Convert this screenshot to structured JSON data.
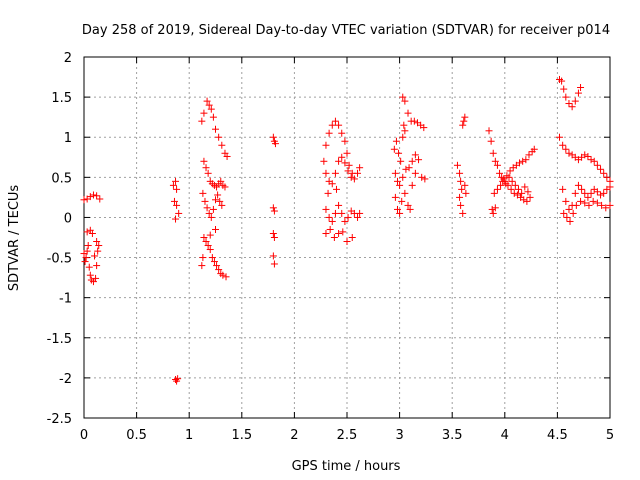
{
  "chart_data": {
    "type": "scatter",
    "title": "Day 258 of 2019, Sidereal Day-to-day VTEC variation (SDTVAR) for receiver p014",
    "xlabel": "GPS time / hours",
    "ylabel": "SDTVAR / TECUs",
    "xlim": [
      0,
      5
    ],
    "ylim": [
      -2.5,
      2
    ],
    "xticks": [
      "0",
      "0.5",
      "1",
      "1.5",
      "2",
      "2.5",
      "3",
      "3.5",
      "4",
      "4.5",
      "5"
    ],
    "yticks": [
      "2",
      "1.5",
      "1",
      "0.5",
      "0",
      "-0.5",
      "-1",
      "-1.5",
      "-2",
      "-2.5"
    ],
    "grid": true,
    "marker": "+",
    "color": "#ff0000",
    "series": [
      {
        "name": "SDTVAR",
        "points": [
          [
            0.0,
            0.22
          ],
          [
            0.03,
            0.23
          ],
          [
            0.06,
            0.26
          ],
          [
            0.09,
            0.28
          ],
          [
            0.12,
            0.27
          ],
          [
            0.15,
            0.23
          ],
          [
            0.0,
            -0.45
          ],
          [
            0.01,
            -0.55
          ],
          [
            0.02,
            -0.5
          ],
          [
            0.03,
            -0.42
          ],
          [
            0.04,
            -0.35
          ],
          [
            0.03,
            -0.18
          ],
          [
            0.06,
            -0.16
          ],
          [
            0.08,
            -0.2
          ],
          [
            0.05,
            -0.62
          ],
          [
            0.06,
            -0.72
          ],
          [
            0.07,
            -0.78
          ],
          [
            0.09,
            -0.8
          ],
          [
            0.11,
            -0.76
          ],
          [
            0.12,
            -0.6
          ],
          [
            0.13,
            -0.42
          ],
          [
            0.14,
            -0.35
          ],
          [
            0.12,
            -0.3
          ],
          [
            0.1,
            -0.48
          ],
          [
            0.85,
            0.4
          ],
          [
            0.87,
            0.45
          ],
          [
            0.88,
            0.35
          ],
          [
            0.86,
            0.2
          ],
          [
            0.88,
            0.15
          ],
          [
            0.9,
            0.05
          ],
          [
            0.87,
            -0.02
          ],
          [
            0.87,
            -2.02
          ],
          [
            0.88,
            -2.04
          ],
          [
            0.89,
            -2.01
          ],
          [
            1.12,
            1.2
          ],
          [
            1.14,
            1.3
          ],
          [
            1.17,
            1.45
          ],
          [
            1.19,
            1.4
          ],
          [
            1.21,
            1.35
          ],
          [
            1.23,
            1.25
          ],
          [
            1.25,
            1.1
          ],
          [
            1.28,
            1.0
          ],
          [
            1.31,
            0.9
          ],
          [
            1.34,
            0.8
          ],
          [
            1.36,
            0.76
          ],
          [
            1.14,
            0.7
          ],
          [
            1.16,
            0.62
          ],
          [
            1.18,
            0.55
          ],
          [
            1.2,
            0.45
          ],
          [
            1.22,
            0.42
          ],
          [
            1.24,
            0.4
          ],
          [
            1.26,
            0.38
          ],
          [
            1.28,
            0.42
          ],
          [
            1.3,
            0.45
          ],
          [
            1.32,
            0.4
          ],
          [
            1.34,
            0.38
          ],
          [
            1.13,
            0.3
          ],
          [
            1.15,
            0.2
          ],
          [
            1.17,
            0.12
          ],
          [
            1.19,
            0.05
          ],
          [
            1.21,
            0.0
          ],
          [
            1.23,
            0.1
          ],
          [
            1.25,
            0.22
          ],
          [
            1.27,
            0.28
          ],
          [
            1.29,
            0.2
          ],
          [
            1.31,
            0.15
          ],
          [
            1.14,
            -0.25
          ],
          [
            1.16,
            -0.3
          ],
          [
            1.18,
            -0.35
          ],
          [
            1.2,
            -0.4
          ],
          [
            1.22,
            -0.5
          ],
          [
            1.24,
            -0.55
          ],
          [
            1.26,
            -0.6
          ],
          [
            1.28,
            -0.65
          ],
          [
            1.3,
            -0.7
          ],
          [
            1.32,
            -0.72
          ],
          [
            1.35,
            -0.74
          ],
          [
            1.13,
            -0.5
          ],
          [
            1.12,
            -0.6
          ],
          [
            1.2,
            -0.22
          ],
          [
            1.25,
            -0.15
          ],
          [
            1.8,
            1.0
          ],
          [
            1.81,
            0.95
          ],
          [
            1.82,
            0.92
          ],
          [
            1.8,
            0.12
          ],
          [
            1.81,
            0.08
          ],
          [
            1.8,
            -0.2
          ],
          [
            1.81,
            -0.25
          ],
          [
            1.8,
            -0.48
          ],
          [
            1.81,
            -0.58
          ],
          [
            2.28,
            0.7
          ],
          [
            2.3,
            0.9
          ],
          [
            2.33,
            1.05
          ],
          [
            2.36,
            1.15
          ],
          [
            2.39,
            1.2
          ],
          [
            2.42,
            1.15
          ],
          [
            2.45,
            1.05
          ],
          [
            2.48,
            0.95
          ],
          [
            2.5,
            0.8
          ],
          [
            2.52,
            0.65
          ],
          [
            2.55,
            0.55
          ],
          [
            2.3,
            0.55
          ],
          [
            2.33,
            0.45
          ],
          [
            2.36,
            0.42
          ],
          [
            2.39,
            0.55
          ],
          [
            2.42,
            0.7
          ],
          [
            2.45,
            0.75
          ],
          [
            2.48,
            0.68
          ],
          [
            2.51,
            0.58
          ],
          [
            2.54,
            0.5
          ],
          [
            2.57,
            0.48
          ],
          [
            2.6,
            0.55
          ],
          [
            2.62,
            0.62
          ],
          [
            2.3,
            0.1
          ],
          [
            2.33,
            0.0
          ],
          [
            2.36,
            -0.05
          ],
          [
            2.39,
            0.05
          ],
          [
            2.42,
            0.15
          ],
          [
            2.45,
            0.05
          ],
          [
            2.48,
            -0.05
          ],
          [
            2.51,
            0.0
          ],
          [
            2.54,
            0.08
          ],
          [
            2.57,
            0.05
          ],
          [
            2.6,
            0.0
          ],
          [
            2.62,
            0.05
          ],
          [
            2.3,
            -0.2
          ],
          [
            2.34,
            -0.15
          ],
          [
            2.38,
            -0.25
          ],
          [
            2.42,
            -0.2
          ],
          [
            2.46,
            -0.18
          ],
          [
            2.5,
            -0.3
          ],
          [
            2.55,
            -0.25
          ],
          [
            2.32,
            0.3
          ],
          [
            2.4,
            0.35
          ],
          [
            2.95,
            0.85
          ],
          [
            2.97,
            0.95
          ],
          [
            2.99,
            0.8
          ],
          [
            3.01,
            0.7
          ],
          [
            3.03,
            1.0
          ],
          [
            3.05,
            1.08
          ],
          [
            3.04,
            1.15
          ],
          [
            3.03,
            1.5
          ],
          [
            3.05,
            1.45
          ],
          [
            3.08,
            1.3
          ],
          [
            3.11,
            1.2
          ],
          [
            3.14,
            1.2
          ],
          [
            3.17,
            1.18
          ],
          [
            3.2,
            1.15
          ],
          [
            3.23,
            1.12
          ],
          [
            2.96,
            0.55
          ],
          [
            2.98,
            0.45
          ],
          [
            3.0,
            0.4
          ],
          [
            3.03,
            0.5
          ],
          [
            3.06,
            0.6
          ],
          [
            3.09,
            0.62
          ],
          [
            3.12,
            0.7
          ],
          [
            3.15,
            0.78
          ],
          [
            3.18,
            0.72
          ],
          [
            3.21,
            0.5
          ],
          [
            3.24,
            0.48
          ],
          [
            2.96,
            0.25
          ],
          [
            2.98,
            0.1
          ],
          [
            3.0,
            0.05
          ],
          [
            3.02,
            0.2
          ],
          [
            3.05,
            0.3
          ],
          [
            3.08,
            0.15
          ],
          [
            3.1,
            0.1
          ],
          [
            3.12,
            0.4
          ],
          [
            3.15,
            0.55
          ],
          [
            3.55,
            0.65
          ],
          [
            3.57,
            0.55
          ],
          [
            3.58,
            0.45
          ],
          [
            3.59,
            0.35
          ],
          [
            3.57,
            0.25
          ],
          [
            3.58,
            0.15
          ],
          [
            3.6,
            0.05
          ],
          [
            3.61,
            1.2
          ],
          [
            3.62,
            1.25
          ],
          [
            3.6,
            1.15
          ],
          [
            3.62,
            0.4
          ],
          [
            3.63,
            0.3
          ],
          [
            3.85,
            1.08
          ],
          [
            3.87,
            0.95
          ],
          [
            3.89,
            0.8
          ],
          [
            3.91,
            0.7
          ],
          [
            3.93,
            0.65
          ],
          [
            3.95,
            0.55
          ],
          [
            3.97,
            0.5
          ],
          [
            4.0,
            0.45
          ],
          [
            4.03,
            0.4
          ],
          [
            4.06,
            0.35
          ],
          [
            4.09,
            0.3
          ],
          [
            4.12,
            0.28
          ],
          [
            4.15,
            0.25
          ],
          [
            4.18,
            0.22
          ],
          [
            4.21,
            0.2
          ],
          [
            4.24,
            0.25
          ],
          [
            3.9,
            0.3
          ],
          [
            3.93,
            0.35
          ],
          [
            3.96,
            0.4
          ],
          [
            3.99,
            0.48
          ],
          [
            4.02,
            0.52
          ],
          [
            4.05,
            0.58
          ],
          [
            4.08,
            0.62
          ],
          [
            4.11,
            0.65
          ],
          [
            4.14,
            0.68
          ],
          [
            4.17,
            0.7
          ],
          [
            4.2,
            0.72
          ],
          [
            4.23,
            0.78
          ],
          [
            4.26,
            0.82
          ],
          [
            4.28,
            0.85
          ],
          [
            3.88,
            0.1
          ],
          [
            3.89,
            0.05
          ],
          [
            3.91,
            0.12
          ],
          [
            3.98,
            0.45
          ],
          [
            4.01,
            0.42
          ],
          [
            4.04,
            0.5
          ],
          [
            4.07,
            0.45
          ],
          [
            4.1,
            0.4
          ],
          [
            4.13,
            0.35
          ],
          [
            4.16,
            0.3
          ],
          [
            4.19,
            0.38
          ],
          [
            4.22,
            0.32
          ],
          [
            4.52,
            1.72
          ],
          [
            4.54,
            1.7
          ],
          [
            4.56,
            1.6
          ],
          [
            4.58,
            1.5
          ],
          [
            4.61,
            1.42
          ],
          [
            4.64,
            1.38
          ],
          [
            4.67,
            1.45
          ],
          [
            4.7,
            1.55
          ],
          [
            4.72,
            1.62
          ],
          [
            4.52,
            1.0
          ],
          [
            4.55,
            0.9
          ],
          [
            4.58,
            0.85
          ],
          [
            4.61,
            0.8
          ],
          [
            4.64,
            0.78
          ],
          [
            4.67,
            0.75
          ],
          [
            4.7,
            0.72
          ],
          [
            4.73,
            0.75
          ],
          [
            4.76,
            0.78
          ],
          [
            4.79,
            0.76
          ],
          [
            4.82,
            0.72
          ],
          [
            4.85,
            0.7
          ],
          [
            4.88,
            0.65
          ],
          [
            4.91,
            0.6
          ],
          [
            4.94,
            0.55
          ],
          [
            4.97,
            0.5
          ],
          [
            5.0,
            0.45
          ],
          [
            4.55,
            0.35
          ],
          [
            4.58,
            0.2
          ],
          [
            4.61,
            0.1
          ],
          [
            4.64,
            0.15
          ],
          [
            4.67,
            0.3
          ],
          [
            4.7,
            0.4
          ],
          [
            4.73,
            0.35
          ],
          [
            4.76,
            0.3
          ],
          [
            4.79,
            0.25
          ],
          [
            4.82,
            0.3
          ],
          [
            4.85,
            0.35
          ],
          [
            4.88,
            0.32
          ],
          [
            4.91,
            0.28
          ],
          [
            4.94,
            0.3
          ],
          [
            4.97,
            0.35
          ],
          [
            5.0,
            0.38
          ],
          [
            4.56,
            0.05
          ],
          [
            4.59,
            0.0
          ],
          [
            4.62,
            -0.05
          ],
          [
            4.65,
            0.05
          ],
          [
            4.68,
            0.15
          ],
          [
            4.72,
            0.2
          ],
          [
            4.76,
            0.18
          ],
          [
            4.8,
            0.15
          ],
          [
            4.84,
            0.2
          ],
          [
            4.88,
            0.18
          ],
          [
            4.92,
            0.15
          ],
          [
            4.96,
            0.12
          ],
          [
            5.0,
            0.15
          ]
        ]
      }
    ]
  }
}
